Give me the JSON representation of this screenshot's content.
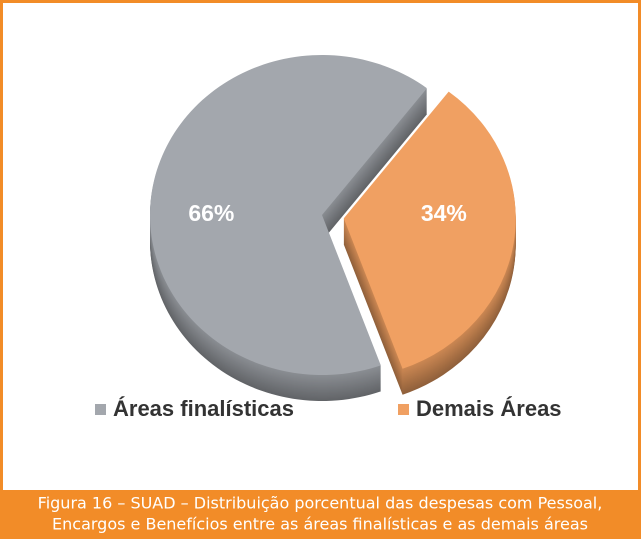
{
  "chart_data": {
    "type": "pie",
    "categories": [
      "Áreas finalísticas",
      "Demais Áreas"
    ],
    "values": [
      66,
      34
    ],
    "value_labels": [
      "66%",
      "34%"
    ],
    "colors": [
      "#a3a7ad",
      "#f0a062"
    ],
    "legend": "bottom",
    "caption": [
      "Figura 16 – SUAD – Distribuição porcentual das despesas com Pessoal,",
      "Encargos e Benefícios entre as áreas finalísticas e as demais áreas"
    ]
  }
}
